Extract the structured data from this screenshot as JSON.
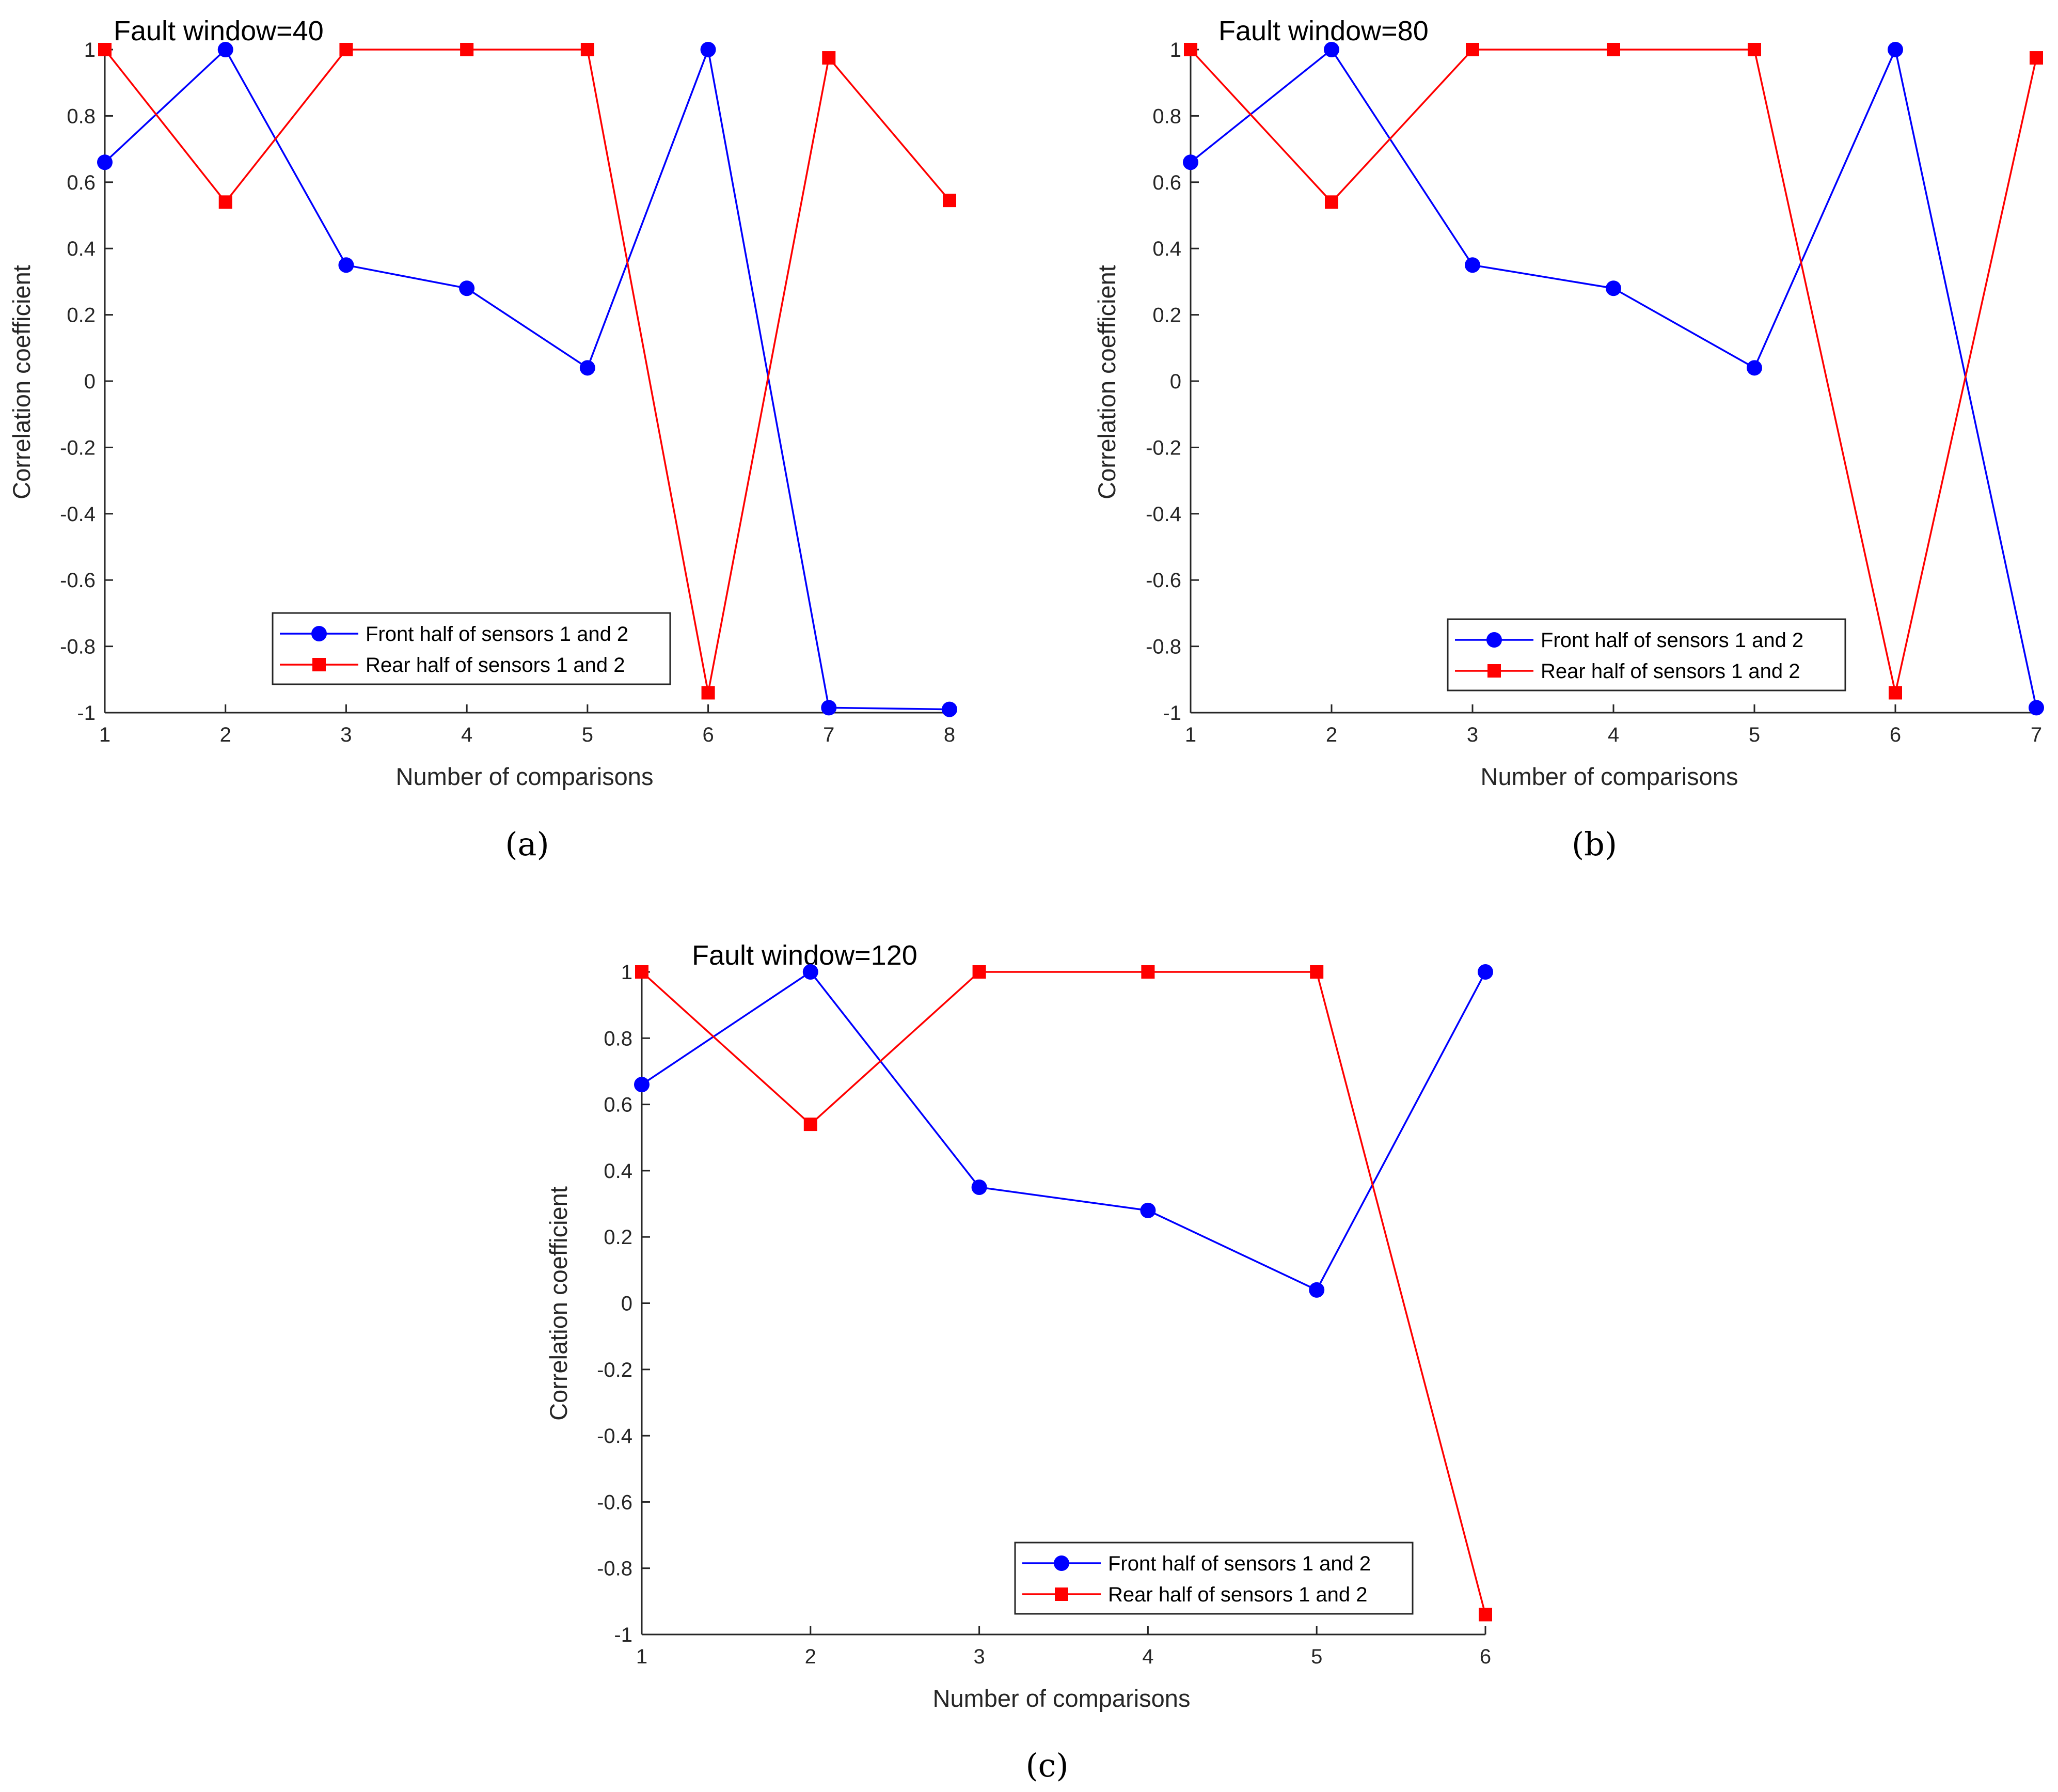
{
  "chart_data": [
    {
      "type": "line",
      "panel_label": "(a)",
      "title": "Fault window=40",
      "xlabel": "Number of comparisons",
      "ylabel": "Correlation coefficient",
      "xlim": [
        1,
        8
      ],
      "ylim": [
        -1,
        1
      ],
      "x_ticks": [
        "1",
        "2",
        "3",
        "4",
        "5",
        "6",
        "7",
        "8"
      ],
      "y_ticks": [
        "1",
        "0.8",
        "0.6",
        "0.4",
        "0.2",
        "0",
        "-0.2",
        "-0.4",
        "-0.6",
        "-0.8",
        "-1"
      ],
      "legend_position": "bottom-center",
      "series": [
        {
          "name": "Front half of sensors 1 and 2",
          "color": "#0000ff",
          "marker": "circle",
          "x": [
            1,
            2,
            3,
            4,
            5,
            6,
            7,
            8
          ],
          "values": [
            0.66,
            1.0,
            0.35,
            0.28,
            0.04,
            1.0,
            -0.985,
            -0.99
          ]
        },
        {
          "name": "Rear half of sensors 1 and 2",
          "color": "#ff0000",
          "marker": "square",
          "x": [
            1,
            2,
            3,
            4,
            5,
            6,
            7,
            8
          ],
          "values": [
            1.0,
            0.54,
            1.0,
            1.0,
            1.0,
            -0.94,
            0.975,
            0.545
          ]
        }
      ]
    },
    {
      "type": "line",
      "panel_label": "(b)",
      "title": "Fault window=80",
      "xlabel": "Number of comparisons",
      "ylabel": "Correlation coefficient",
      "xlim": [
        1,
        7
      ],
      "ylim": [
        -1,
        1
      ],
      "x_ticks": [
        "1",
        "2",
        "3",
        "4",
        "5",
        "6",
        "7"
      ],
      "y_ticks": [
        "1",
        "0.8",
        "0.6",
        "0.4",
        "0.2",
        "0",
        "-0.2",
        "-0.4",
        "-0.6",
        "-0.8",
        "-1"
      ],
      "legend_position": "bottom-center",
      "series": [
        {
          "name": "Front half of sensors 1 and 2",
          "color": "#0000ff",
          "marker": "circle",
          "x": [
            1,
            2,
            3,
            4,
            5,
            6,
            7
          ],
          "values": [
            0.66,
            1.0,
            0.35,
            0.28,
            0.04,
            1.0,
            -0.985
          ]
        },
        {
          "name": "Rear half of sensors 1 and 2",
          "color": "#ff0000",
          "marker": "square",
          "x": [
            1,
            2,
            3,
            4,
            5,
            6,
            7
          ],
          "values": [
            1.0,
            0.54,
            1.0,
            1.0,
            1.0,
            -0.94,
            0.975
          ]
        }
      ]
    },
    {
      "type": "line",
      "panel_label": "(c)",
      "title": "Fault window=120",
      "xlabel": "Number of comparisons",
      "ylabel": "Correlation coefficient",
      "xlim": [
        1,
        6
      ],
      "ylim": [
        -1,
        1
      ],
      "x_ticks": [
        "1",
        "2",
        "3",
        "4",
        "5",
        "6"
      ],
      "y_ticks": [
        "1",
        "0.8",
        "0.6",
        "0.4",
        "0.2",
        "0",
        "-0.2",
        "-0.4",
        "-0.6",
        "-0.8",
        "-1"
      ],
      "legend_position": "bottom-right",
      "series": [
        {
          "name": "Front half of sensors 1 and 2",
          "color": "#0000ff",
          "marker": "circle",
          "x": [
            1,
            2,
            3,
            4,
            5,
            6
          ],
          "values": [
            0.66,
            1.0,
            0.35,
            0.28,
            0.04,
            1.0
          ]
        },
        {
          "name": "Rear half of sensors 1 and 2",
          "color": "#ff0000",
          "marker": "square",
          "x": [
            1,
            2,
            3,
            4,
            5,
            6
          ],
          "values": [
            1.0,
            0.54,
            1.0,
            1.0,
            1.0,
            -0.94
          ]
        }
      ]
    }
  ]
}
